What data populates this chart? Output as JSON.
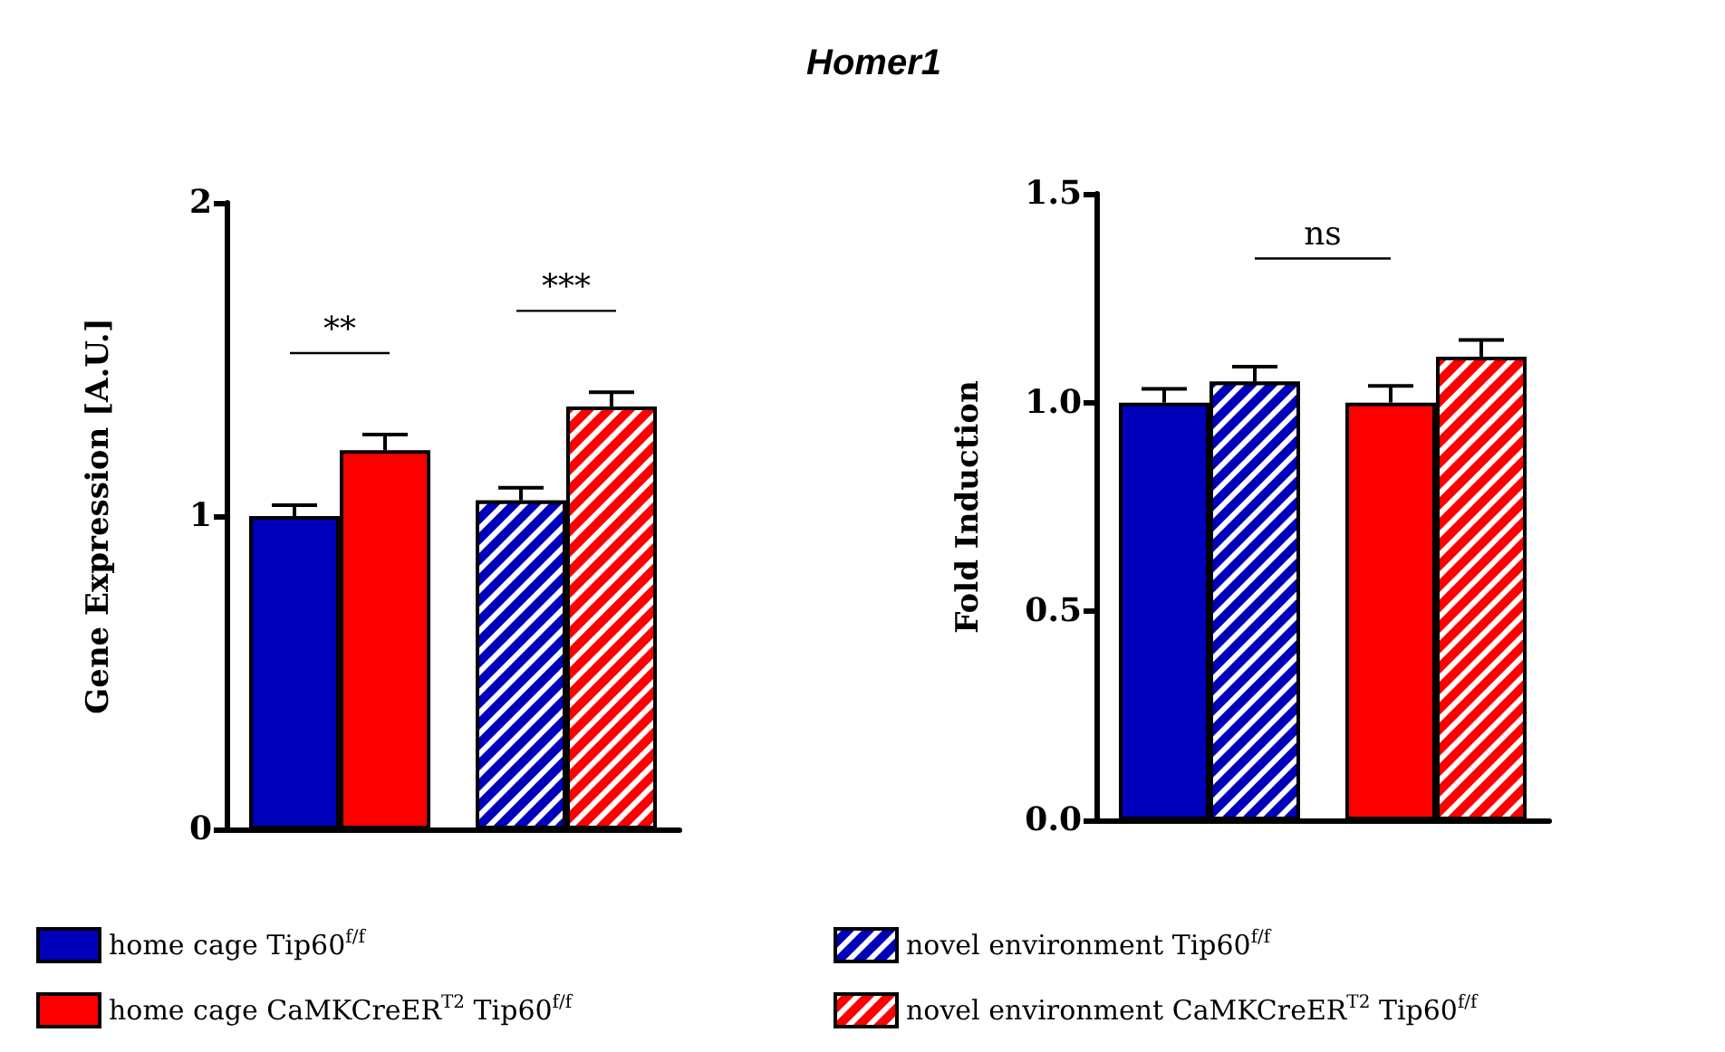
{
  "chart_data": [
    {
      "type": "bar",
      "ylabel": "Gene Expression [A.U.]",
      "categories": [
        null,
        null
      ],
      "ylim": [
        0,
        2
      ],
      "yticks": [
        0,
        1,
        2
      ],
      "grid": false,
      "legend": "bottom",
      "annotations": [
        "**",
        "***"
      ],
      "series": [
        {
          "name": "home cage Tip60$^{f/f}$",
          "color": "#0000bb",
          "values": [
            1.0,
            null
          ],
          "errors": [
            0.035,
            null
          ]
        },
        {
          "name": "home cage CaMKCreER$^{T2}$ Tip60$^{f/f}$",
          "color": "#ff0000",
          "values": [
            1.21,
            null
          ],
          "errors": [
            0.05,
            null
          ]
        },
        {
          "name": "novel environment Tip60$^{f/f}$",
          "color": "#0000bb",
          "values": [
            null,
            1.05
          ],
          "errors": [
            null,
            0.04
          ]
        },
        {
          "name": "novel environment CaMKCreER$^{T2}$ Tip60$^{f/f}$",
          "color": "#ff0000",
          "values": [
            null,
            1.35
          ],
          "errors": [
            null,
            0.045
          ]
        }
      ]
    },
    {
      "type": "bar",
      "title": "Homer1",
      "ylabel": "Fold Induction",
      "categories": [
        null,
        null
      ],
      "ylim": [
        0,
        1.5
      ],
      "yticks": [
        {
          "value": 0,
          "label": "0.0"
        },
        {
          "value": 0.5,
          "label": "0.5"
        },
        {
          "value": 1,
          "label": "1.0"
        },
        {
          "value": 1.5,
          "label": "1.5"
        }
      ],
      "grid": false,
      "annotations": [
        "ns"
      ],
      "series": [
        {
          "color": "#0000bb",
          "values": [
            1.0,
            null
          ],
          "errors": [
            0.033,
            null
          ]
        },
        {
          "color": "#0000bb",
          "values": [
            1.05,
            null
          ],
          "errors": [
            0.036,
            null
          ]
        },
        {
          "color": "#ff0000",
          "values": [
            null,
            1.0
          ],
          "errors": [
            null,
            0.04
          ]
        },
        {
          "color": "#ff0000",
          "values": [
            null,
            1.11
          ],
          "errors": [
            null,
            0.04
          ]
        }
      ]
    }
  ]
}
